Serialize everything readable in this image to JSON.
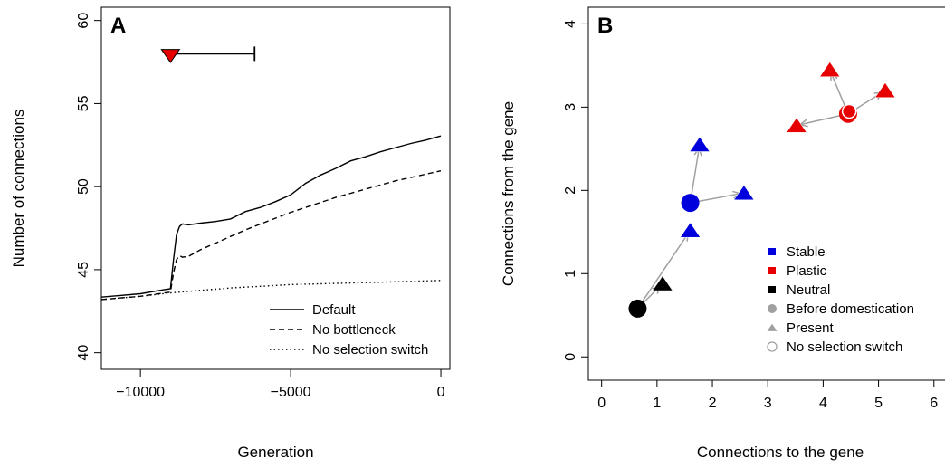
{
  "chart_data": [
    {
      "panel": "A",
      "type": "line",
      "xlabel": "Generation",
      "ylabel": "Number of connections",
      "xlim": [
        -11300,
        300
      ],
      "ylim": [
        39,
        60.8
      ],
      "xticks": [
        -10000,
        -5000,
        0
      ],
      "xtick_labels": [
        "−10000",
        "−5000",
        "0"
      ],
      "yticks": [
        40,
        45,
        50,
        55,
        60
      ],
      "ytick_labels": [
        "40",
        "45",
        "50",
        "55",
        "60"
      ],
      "series": [
        {
          "name": "Default",
          "dash": "solid",
          "x": [
            -11300,
            -10000,
            -9200,
            -9000,
            -8900,
            -8800,
            -8700,
            -8600,
            -8400,
            -8000,
            -7500,
            -7000,
            -6500,
            -6000,
            -5500,
            -5000,
            -4500,
            -4000,
            -3500,
            -3000,
            -2500,
            -2000,
            -1500,
            -1000,
            -500,
            0
          ],
          "y": [
            43.35,
            43.55,
            43.8,
            43.85,
            45.6,
            47.1,
            47.6,
            47.75,
            47.7,
            47.8,
            47.9,
            48.05,
            48.5,
            48.75,
            49.1,
            49.5,
            50.2,
            50.7,
            51.1,
            51.55,
            51.8,
            52.1,
            52.35,
            52.6,
            52.8,
            53.05
          ]
        },
        {
          "name": "No bottleneck",
          "dash": "dashed",
          "x": [
            -11300,
            -10000,
            -9200,
            -9000,
            -8900,
            -8800,
            -8700,
            -8600,
            -8400,
            -8000,
            -7500,
            -7000,
            -6500,
            -6000,
            -5500,
            -5000,
            -4500,
            -4000,
            -3500,
            -3000,
            -2500,
            -2000,
            -1500,
            -1000,
            -500,
            0
          ],
          "y": [
            43.2,
            43.4,
            43.6,
            43.65,
            44.8,
            45.6,
            45.85,
            45.75,
            45.8,
            46.2,
            46.6,
            47.0,
            47.4,
            47.75,
            48.1,
            48.45,
            48.75,
            49.05,
            49.35,
            49.6,
            49.85,
            50.1,
            50.35,
            50.55,
            50.75,
            50.95
          ]
        },
        {
          "name": "No selection switch",
          "dash": "dotted",
          "x": [
            -11300,
            -10000,
            -9000,
            -8000,
            -7000,
            -6000,
            -5000,
            -4000,
            -3000,
            -2000,
            -1000,
            0
          ],
          "y": [
            43.2,
            43.4,
            43.6,
            43.75,
            43.9,
            44.0,
            44.1,
            44.15,
            44.2,
            44.25,
            44.3,
            44.35
          ]
        }
      ],
      "annotation": {
        "marker": "down-triangle",
        "marker_color": "#e60000",
        "x": -9000,
        "y": 58,
        "bar_x_end": -6200
      },
      "legend": {
        "placement": "bottom-right",
        "entries": [
          "Default",
          "No bottleneck",
          "No selection switch"
        ]
      }
    },
    {
      "panel": "B",
      "type": "scatter",
      "xlabel": "Connections to the gene",
      "ylabel": "Connections from the gene",
      "xlim": [
        -0.24,
        6.2
      ],
      "ylim": [
        -0.28,
        4.2
      ],
      "xticks": [
        0,
        1,
        2,
        3,
        4,
        5,
        6
      ],
      "xtick_labels": [
        "0",
        "1",
        "2",
        "3",
        "4",
        "5",
        "6"
      ],
      "yticks": [
        0,
        1,
        2,
        3,
        4
      ],
      "ytick_labels": [
        "0",
        "1",
        "2",
        "3",
        "4"
      ],
      "colors": {
        "stable": "#0000dd",
        "plastic": "#e60000",
        "neutral": "#000000",
        "arrow": "#a0a0a0"
      },
      "groups": [
        {
          "category": "neutral",
          "before": {
            "x": 0.65,
            "y": 0.58
          },
          "present": [
            {
              "x": 1.1,
              "y": 0.88
            }
          ],
          "no_selection_switch": null
        },
        {
          "category": "stable",
          "before": {
            "x": 1.6,
            "y": 1.85
          },
          "present": [
            {
              "x": 1.6,
              "y": 1.52
            },
            {
              "x": 2.57,
              "y": 1.97
            },
            {
              "x": 1.77,
              "y": 2.55
            }
          ],
          "no_selection_switch": null
        },
        {
          "category": "plastic",
          "before": {
            "x": 4.45,
            "y": 2.92
          },
          "present": [
            {
              "x": 5.12,
              "y": 3.2
            },
            {
              "x": 4.12,
              "y": 3.45
            },
            {
              "x": 3.52,
              "y": 2.78
            }
          ],
          "no_selection_switch": {
            "x": 4.47,
            "y": 2.95
          }
        }
      ],
      "arrows": [
        {
          "from": [
            0.65,
            0.58
          ],
          "to": [
            1.1,
            0.88
          ]
        },
        {
          "from": [
            0.65,
            0.58
          ],
          "to": [
            1.6,
            1.52
          ]
        },
        {
          "from": [
            1.6,
            1.85
          ],
          "to": [
            2.57,
            1.97
          ]
        },
        {
          "from": [
            1.6,
            1.85
          ],
          "to": [
            1.77,
            2.55
          ]
        },
        {
          "from": [
            4.45,
            2.92
          ],
          "to": [
            5.12,
            3.2
          ]
        },
        {
          "from": [
            4.45,
            2.92
          ],
          "to": [
            4.12,
            3.45
          ]
        },
        {
          "from": [
            4.45,
            2.92
          ],
          "to": [
            3.52,
            2.78
          ]
        }
      ],
      "legend": {
        "placement": "bottom-right",
        "entries": [
          {
            "label": "Stable",
            "symbol": "square",
            "color": "#0000dd"
          },
          {
            "label": "Plastic",
            "symbol": "square",
            "color": "#e60000"
          },
          {
            "label": "Neutral",
            "symbol": "square",
            "color": "#000000"
          },
          {
            "label": "Before domestication",
            "symbol": "circle",
            "color": "#a0a0a0"
          },
          {
            "label": "Present",
            "symbol": "triangle",
            "color": "#a0a0a0"
          },
          {
            "label": "No selection switch",
            "symbol": "open-circle",
            "color": "#a0a0a0"
          }
        ]
      }
    }
  ]
}
